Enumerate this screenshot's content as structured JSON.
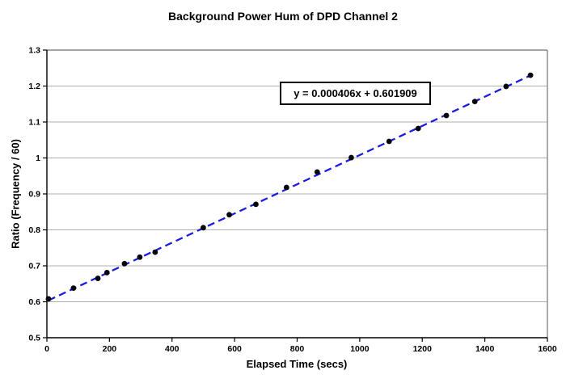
{
  "window": {
    "background": "#ffffff"
  },
  "chart_data": {
    "type": "scatter",
    "title": "Background Power Hum of DPD Channel 2",
    "xlabel": "Elapsed Time (secs)",
    "ylabel": "Ratio (Frequency / 60)",
    "xlim": [
      0,
      1600
    ],
    "ylim": [
      0.5,
      1.3
    ],
    "xticks": [
      0,
      200,
      400,
      600,
      800,
      1000,
      1200,
      1400,
      1600
    ],
    "yticks": [
      0.5,
      0.6,
      0.7,
      0.8,
      0.9,
      1,
      1.1,
      1.2,
      1.3
    ],
    "ytick_labels": [
      "0.5",
      "0.6",
      "0.7",
      "0.8",
      "0.9",
      "1",
      "1.1",
      "1.2",
      "1.3"
    ],
    "grid": true,
    "legend": false,
    "points": [
      [
        5,
        0.608
      ],
      [
        85,
        0.638
      ],
      [
        163,
        0.665
      ],
      [
        192,
        0.681
      ],
      [
        248,
        0.706
      ],
      [
        297,
        0.724
      ],
      [
        346,
        0.738
      ],
      [
        500,
        0.806
      ],
      [
        583,
        0.842
      ],
      [
        668,
        0.871
      ],
      [
        766,
        0.918
      ],
      [
        864,
        0.961
      ],
      [
        973,
        1.001
      ],
      [
        1094,
        1.046
      ],
      [
        1187,
        1.082
      ],
      [
        1277,
        1.118
      ],
      [
        1368,
        1.157
      ],
      [
        1468,
        1.199
      ],
      [
        1546,
        1.23
      ]
    ],
    "trendline": {
      "equation": "y = 0.000406x + 0.601909",
      "slope": 0.000406,
      "intercept": 0.601909,
      "x_start": 5,
      "x_end": 1546,
      "style": "dashed"
    },
    "colors": {
      "point": "#06060f",
      "trendline": "#1c1ce0",
      "gridline": "#b0b0b0",
      "axis": "#000000",
      "plot_border": "#858585",
      "equation_text": "#000000"
    }
  }
}
